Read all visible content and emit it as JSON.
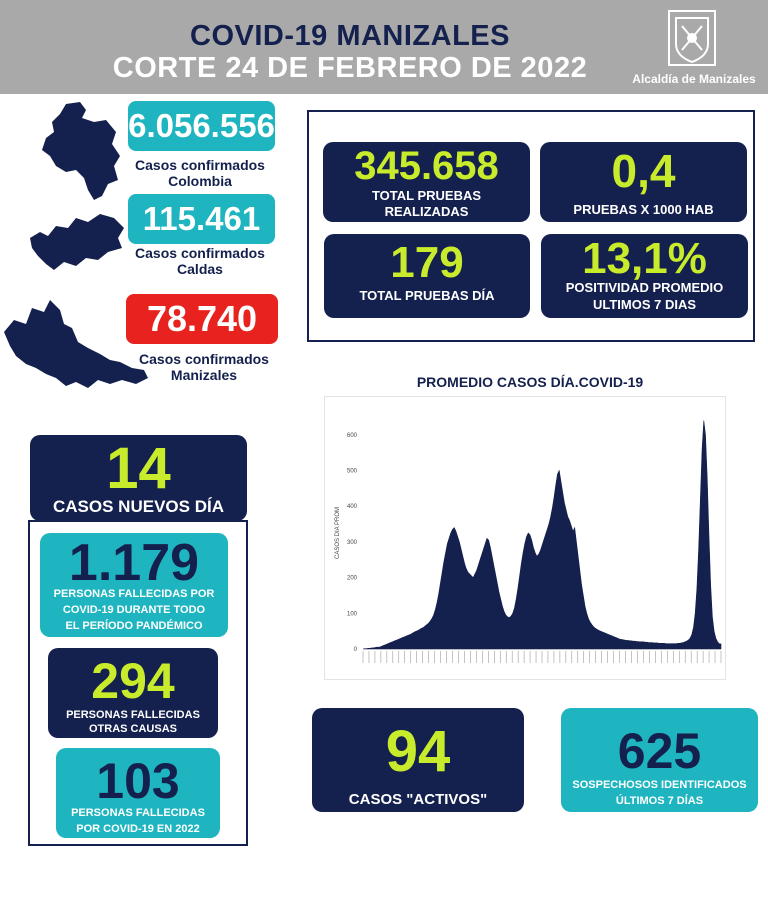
{
  "header": {
    "title_line1": "COVID-19 MANIZALES",
    "title_line2": "CORTE 24 DE FEBRERO DE 2022",
    "org_name": "Alcaldía de Manizales"
  },
  "confirmed": {
    "colombia": {
      "value": "6.056.556",
      "label_line1": "Casos confirmados",
      "label_line2": "Colombia"
    },
    "caldas": {
      "value": "115.461",
      "label_line1": "Casos confirmados",
      "label_line2": "Caldas"
    },
    "manizales": {
      "value": "78.740",
      "label_line1": "Casos confirmados",
      "label_line2": "Manizales"
    }
  },
  "tests": {
    "total": {
      "value": "345.658",
      "label_line1": "TOTAL PRUEBAS",
      "label_line2": "REALIZADAS"
    },
    "per_1000": {
      "value": "0,4",
      "label": "PRUEBAS X 1000 HAB"
    },
    "today": {
      "value": "179",
      "label": "TOTAL PRUEBAS DÍA"
    },
    "positivity": {
      "value": "13,1%",
      "label_line1": "POSITIVIDAD PROMEDIO",
      "label_line2": "ULTIMOS 7 DIAS"
    }
  },
  "new_cases": {
    "value": "14",
    "label": "CASOS NUEVOS DÍA"
  },
  "deaths": {
    "total": {
      "value": "1.179",
      "label_line1": "PERSONAS FALLECIDAS POR",
      "label_line2": "COVID-19 DURANTE TODO",
      "label_line3": "EL PERÍODO PANDÉMICO"
    },
    "other": {
      "value": "294",
      "label_line1": "PERSONAS FALLECIDAS",
      "label_line2": "OTRAS CAUSAS"
    },
    "year2022": {
      "value": "103",
      "label_line1": "PERSONAS FALLECIDAS",
      "label_line2": "POR COVID-19 EN 2022"
    }
  },
  "active": {
    "value": "94",
    "label": "CASOS \"ACTIVOS\""
  },
  "suspects": {
    "value": "625",
    "label_line1": "SOSPECHOSOS IDENTIFICADOS",
    "label_line2": "ÚLTIMOS 7 DÍAS"
  },
  "colors": {
    "navy": "#14204d",
    "lime": "#c8ec2c",
    "teal": "#1fb5c0",
    "red": "#e8231f",
    "header_gray": "#a9a9a9"
  },
  "chart_data": {
    "type": "area",
    "title": "PROMEDIO CASOS DÍA.COVID-19",
    "xlabel": "",
    "ylabel": "CASOS DIA PROM",
    "ylim": [
      0,
      650
    ],
    "yticks": [
      0,
      100,
      200,
      300,
      400,
      500,
      600
    ],
    "series": [
      {
        "name": "",
        "values": [
          0,
          1,
          1,
          2,
          2,
          3,
          3,
          4,
          5,
          5,
          6,
          8,
          10,
          12,
          14,
          16,
          18,
          20,
          22,
          24,
          26,
          28,
          30,
          32,
          34,
          36,
          38,
          40,
          42,
          45,
          48,
          50,
          52,
          55,
          58,
          60,
          64,
          68,
          72,
          78,
          85,
          95,
          110,
          130,
          155,
          185,
          215,
          245,
          270,
          295,
          310,
          325,
          335,
          340,
          330,
          315,
          300,
          280,
          260,
          240,
          225,
          215,
          210,
          205,
          200,
          210,
          220,
          235,
          250,
          265,
          280,
          295,
          310,
          305,
          285,
          260,
          235,
          210,
          185,
          160,
          140,
          120,
          105,
          95,
          90,
          88,
          92,
          100,
          115,
          140,
          170,
          205,
          240,
          270,
          295,
          315,
          325,
          320,
          305,
          285,
          270,
          260,
          265,
          275,
          290,
          305,
          320,
          335,
          350,
          370,
          395,
          425,
          460,
          490,
          500,
          470,
          440,
          410,
          390,
          370,
          360,
          345,
          330,
          340,
          300,
          260,
          220,
          180,
          150,
          120,
          100,
          85,
          75,
          68,
          62,
          58,
          55,
          52,
          50,
          48,
          46,
          44,
          42,
          40,
          38,
          36,
          34,
          32,
          30,
          28,
          27,
          26,
          25,
          24,
          24,
          23,
          23,
          22,
          22,
          21,
          21,
          20,
          20,
          20,
          19,
          19,
          18,
          18,
          18,
          17,
          17,
          17,
          16,
          16,
          16,
          16,
          15,
          15,
          15,
          15,
          15,
          15,
          15,
          16,
          16,
          17,
          18,
          20,
          22,
          25,
          30,
          40,
          60,
          100,
          170,
          280,
          420,
          560,
          640,
          600,
          480,
          320,
          180,
          90,
          50,
          30,
          20,
          15,
          14
        ]
      }
    ]
  }
}
